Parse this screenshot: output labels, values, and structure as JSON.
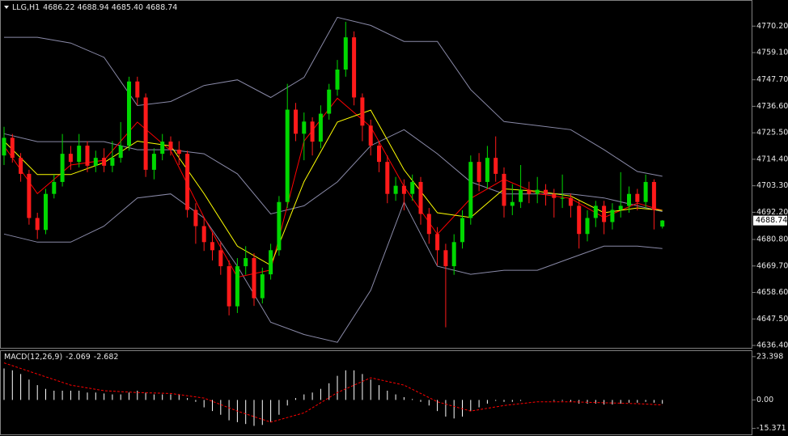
{
  "chart_data": [
    {
      "type": "candlestick",
      "title": "LLG,H1",
      "quote": "4686.22 4688.94 4685.40 4688.74",
      "up_color": "#00d800",
      "down_color": "#ff1a1a",
      "open": [
        4716,
        4723.4,
        4715,
        4708.3,
        4689.8,
        4684.8,
        4699.9,
        4704.9,
        4716.7,
        4713.3,
        4720.1,
        4711.7,
        4715,
        4711.7,
        4715,
        4720.1,
        4747,
        4740.3,
        4710,
        4716.7,
        4721.8,
        4718.4,
        4716.7,
        4693.2,
        4686.4,
        4679.7,
        4676.3,
        4669.6,
        4652.8,
        4669.6,
        4673,
        4656.2,
        4666.2,
        4676.3,
        4696.5,
        4735.2,
        4725.1,
        4730.2,
        4721.8,
        4733.5,
        4743.6,
        4752,
        4765.5,
        4740.3,
        4728.5,
        4720.1,
        4713.3,
        4699.9,
        4703.3,
        4699.9,
        4704.9,
        4691.5,
        4683.1,
        4676.3,
        4669.6,
        4679.7,
        4689.8,
        4713.3,
        4704.9,
        4715,
        4708.3,
        4694.9,
        4696.5,
        4701.6,
        4699.9,
        4701.6,
        4699.9,
        4698.2,
        4698.2,
        4694.9,
        4683.1,
        4689.8,
        4694.9,
        4688.1,
        4693.2,
        4694.9,
        4699.9,
        4696.5,
        4704.9,
        4686.22
      ],
      "high": [
        4728,
        4725,
        4717,
        4710,
        4692,
        4702,
        4708,
        4725,
        4720,
        4725,
        4722,
        4718,
        4719,
        4722,
        4730,
        4749,
        4749,
        4742,
        4719,
        4725,
        4724,
        4722,
        4718,
        4696,
        4690,
        4684,
        4680,
        4672,
        4673,
        4678,
        4675,
        4669,
        4679,
        4699,
        4746,
        4738,
        4734,
        4732,
        4737,
        4746,
        4756,
        4772,
        4768,
        4742,
        4731,
        4722,
        4716,
        4707,
        4706,
        4708,
        4707,
        4694,
        4686,
        4679,
        4683,
        4693,
        4716,
        4717,
        4720,
        4724,
        4711,
        4704,
        4712,
        4705,
        4707,
        4704,
        4702,
        4708,
        4700,
        4697,
        4693,
        4697,
        4697,
        4696,
        4709,
        4703,
        4702,
        4708,
        4706,
        4688.94
      ],
      "low": [
        4712,
        4713,
        4705,
        4687,
        4681,
        4683,
        4698,
        4703,
        4710,
        4711,
        4709,
        4709,
        4709,
        4709,
        4713,
        4718,
        4737,
        4707,
        4706,
        4714,
        4716,
        4712,
        4690,
        4679,
        4676,
        4672,
        4666,
        4649,
        4650,
        4666,
        4653,
        4654,
        4664,
        4674,
        4694,
        4722,
        4714,
        4716,
        4719,
        4731,
        4741,
        4749,
        4737,
        4722,
        4716,
        4709,
        4696,
        4697,
        4693,
        4697,
        4687,
        4679,
        4670,
        4644,
        4666,
        4677,
        4687,
        4701,
        4702,
        4705,
        4690,
        4691,
        4694,
        4696,
        4696,
        4695,
        4690,
        4694,
        4690,
        4677,
        4680,
        4686,
        4683,
        4685,
        4690,
        4692,
        4693,
        4694,
        4685,
        4685.4
      ],
      "close": [
        4723.4,
        4715,
        4708.3,
        4689.8,
        4684.8,
        4699.9,
        4704.9,
        4716.7,
        4713.3,
        4720.1,
        4711.7,
        4715,
        4711.7,
        4715,
        4720.1,
        4747,
        4740.3,
        4710,
        4716.7,
        4721.8,
        4718.4,
        4716.7,
        4693.2,
        4686.4,
        4679.7,
        4676.3,
        4669.6,
        4652.8,
        4669.6,
        4673,
        4656.2,
        4666.2,
        4676.3,
        4696.5,
        4735.2,
        4725.1,
        4730.2,
        4721.8,
        4733.5,
        4743.6,
        4752,
        4765.5,
        4740.3,
        4728.5,
        4720.1,
        4713.3,
        4699.9,
        4703.3,
        4699.9,
        4704.9,
        4691.5,
        4683.1,
        4676.3,
        4669.6,
        4679.7,
        4689.8,
        4713.3,
        4704.9,
        4715,
        4708.3,
        4694.9,
        4696.5,
        4701.6,
        4699.9,
        4701.6,
        4699.9,
        4698.2,
        4698.2,
        4694.9,
        4683.1,
        4689.8,
        4694.9,
        4688.1,
        4693.2,
        4694.9,
        4699.9,
        4696.5,
        4704.9,
        4693.2,
        4688.74
      ],
      "lines": [
        {
          "color": "#8a8aa8",
          "x": [
            0,
            4,
            8,
            12,
            16,
            20,
            24,
            28,
            32,
            36,
            40,
            44,
            48,
            52,
            56,
            60,
            64,
            68,
            72,
            76,
            79
          ],
          "values": [
            4765.5,
            4765.5,
            4763.1,
            4757.1,
            4736.9,
            4738.6,
            4745.3,
            4747.7,
            4740.3,
            4748.7,
            4773.9,
            4770.5,
            4763.8,
            4763.8,
            4743.6,
            4730.2,
            4728.5,
            4726.8,
            4718.4,
            4709.3,
            4707.3
          ]
        },
        {
          "color": "#8a8aa8",
          "x": [
            0,
            4,
            8,
            12,
            16,
            20,
            24,
            28,
            32,
            36,
            40,
            44,
            48,
            52,
            56,
            60,
            64,
            68,
            72,
            76,
            79
          ],
          "values": [
            4725.1,
            4721.8,
            4721.8,
            4721.8,
            4718.4,
            4718.4,
            4716.7,
            4708.3,
            4691.5,
            4694.9,
            4704.9,
            4720.1,
            4726.8,
            4716.7,
            4704.9,
            4699.9,
            4699.9,
            4699.9,
            4698.2,
            4694.9,
            4692.5
          ]
        },
        {
          "color": "#8a8aa8",
          "x": [
            0,
            4,
            8,
            12,
            16,
            20,
            24,
            28,
            32,
            36,
            40,
            44,
            48,
            52,
            56,
            60,
            64,
            68,
            72,
            76,
            79
          ],
          "values": [
            4683.1,
            4679.7,
            4679.7,
            4686.4,
            4698.2,
            4699.9,
            4689.8,
            4669.6,
            4646.1,
            4641,
            4637.7,
            4659.5,
            4696.5,
            4669.6,
            4666.2,
            4667.9,
            4667.9,
            4673,
            4678,
            4678,
            4677
          ]
        },
        {
          "color": "#ff0000",
          "x": [
            0,
            4,
            8,
            12,
            16,
            20,
            24,
            28,
            32,
            36,
            40,
            44,
            48,
            52,
            56,
            60,
            64,
            68,
            72,
            76,
            79
          ],
          "values": [
            4720,
            4700,
            4712,
            4714,
            4730,
            4718,
            4690,
            4665,
            4668,
            4722,
            4740,
            4728,
            4703,
            4683,
            4698,
            4706,
            4700,
            4698,
            4690,
            4696,
            4693
          ]
        },
        {
          "color": "#ffff00",
          "x": [
            0,
            4,
            8,
            12,
            16,
            20,
            24,
            28,
            32,
            36,
            40,
            44,
            48,
            52,
            56,
            60,
            64,
            68,
            72,
            76,
            79
          ],
          "values": [
            4722,
            4708,
            4708,
            4713,
            4722,
            4720,
            4700,
            4678,
            4670,
            4705,
            4730,
            4735,
            4710,
            4692,
            4690,
            4702,
            4701,
            4699,
            4692,
            4694,
            4693
          ]
        }
      ],
      "ylim": [
        4635.4,
        4780.8
      ],
      "yticks": [
        {
          "value": 4770.2,
          "label": "4770.20"
        },
        {
          "value": 4759.1,
          "label": "4759.10"
        },
        {
          "value": 4747.7,
          "label": "4747.70"
        },
        {
          "value": 4736.6,
          "label": "4736.60"
        },
        {
          "value": 4725.5,
          "label": "4725.50"
        },
        {
          "value": 4714.4,
          "label": "4714.40"
        },
        {
          "value": 4703.3,
          "label": "4703.30"
        },
        {
          "value": 4692.2,
          "label": "4692.20"
        },
        {
          "value": 4680.8,
          "label": "4680.80"
        },
        {
          "value": 4669.7,
          "label": "4669.70"
        },
        {
          "value": 4658.6,
          "label": "4658.60"
        },
        {
          "value": 4647.5,
          "label": "4647.50"
        },
        {
          "value": 4636.4,
          "label": "4636.40"
        }
      ]
    },
    {
      "type": "macd",
      "title": "MACD(12,26,9)",
      "color": "#ffffff",
      "values": [
        17,
        16,
        14,
        11,
        8,
        6,
        5,
        5,
        5,
        5,
        4,
        4,
        3.5,
        3,
        3,
        4,
        5,
        4,
        3,
        3,
        3,
        3,
        1,
        -1,
        -4,
        -6,
        -8,
        -11,
        -12,
        -13,
        -14,
        -13.5,
        -12,
        -8,
        -3,
        1,
        3,
        4,
        6,
        9,
        13,
        16,
        16,
        14,
        11,
        8,
        5,
        3,
        1.5,
        0.5,
        -1,
        -3,
        -6,
        -9,
        -10,
        -9,
        -6,
        -4,
        -2,
        -0.5,
        -1,
        -1,
        -0.5,
        0,
        0,
        0,
        -0.5,
        -0.5,
        -1,
        -2,
        -2,
        -2,
        -2.5,
        -2.5,
        -2,
        -1.5,
        -1.5,
        -1,
        -1.5,
        -2.069
      ],
      "signal": {
        "color": "#ff0000",
        "x": [
          0,
          4,
          8,
          12,
          16,
          20,
          24,
          28,
          32,
          36,
          40,
          44,
          48,
          52,
          56,
          60,
          64,
          68,
          72,
          76,
          79
        ],
        "values": [
          20,
          14,
          8,
          5,
          4,
          3.5,
          1,
          -6,
          -12,
          -7,
          4,
          12,
          8,
          -1,
          -6,
          -3,
          -1,
          -1,
          -1.5,
          -2,
          -2.682
        ]
      },
      "ylim": [
        -18.6,
        26.4
      ],
      "yticks": [
        23.398,
        {
          "value": 0,
          "label": "0.00"
        },
        -15.371
      ]
    }
  ]
}
